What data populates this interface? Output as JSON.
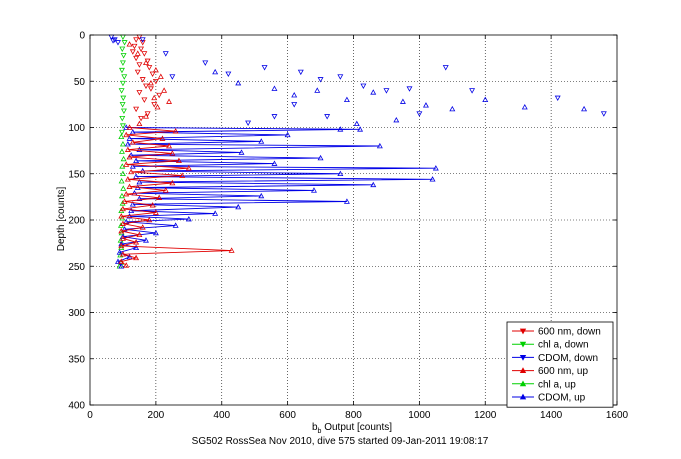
{
  "colors": {
    "red": "#e00000",
    "green": "#00d000",
    "blue": "#0000e6",
    "grid": "#000000"
  },
  "chart_data": {
    "type": "scatter",
    "title": "",
    "xlabel_main": "b",
    "xlabel_sub": "b",
    "xlabel_rest": " Output [counts]",
    "ylabel": "Depth [counts]",
    "footer": "SG502 RossSea Nov 2010, dive 575 started 09-Jan-2011 19:08:17",
    "xlim": [
      0,
      1600
    ],
    "ylim": [
      0,
      400
    ],
    "y_reversed": true,
    "grid": true,
    "legend_position": "bottom-right",
    "x_ticks": [
      "0",
      "200",
      "400",
      "600",
      "800",
      "1000",
      "1200",
      "1400",
      "1600"
    ],
    "x_tick_values": [
      0,
      200,
      400,
      600,
      800,
      1000,
      1200,
      1400,
      1600
    ],
    "y_ticks": [
      "0",
      "50",
      "100",
      "150",
      "200",
      "250",
      "300",
      "350",
      "400"
    ],
    "y_tick_values": [
      0,
      50,
      100,
      150,
      200,
      250,
      300,
      350,
      400
    ],
    "series": [
      {
        "name": "600 nm, down",
        "color": "red",
        "marker": "triangle-down",
        "mode": "markers",
        "points": [
          [
            150,
            2
          ],
          [
            140,
            5
          ],
          [
            160,
            8
          ],
          [
            135,
            12
          ],
          [
            155,
            15
          ],
          [
            130,
            18
          ],
          [
            165,
            20
          ],
          [
            140,
            25
          ],
          [
            175,
            28
          ],
          [
            150,
            32
          ],
          [
            180,
            35
          ],
          [
            145,
            40
          ],
          [
            190,
            42
          ],
          [
            160,
            48
          ],
          [
            200,
            50
          ],
          [
            170,
            55
          ],
          [
            185,
            58
          ],
          [
            150,
            62
          ],
          [
            210,
            65
          ],
          [
            165,
            70
          ],
          [
            195,
            75
          ],
          [
            140,
            80
          ],
          [
            175,
            85
          ],
          [
            155,
            90
          ]
        ]
      },
      {
        "name": "chl a, down",
        "color": "green",
        "marker": "triangle-down",
        "mode": "markers",
        "points": [
          [
            100,
            2
          ],
          [
            105,
            8
          ],
          [
            98,
            15
          ],
          [
            102,
            22
          ],
          [
            100,
            30
          ],
          [
            97,
            38
          ],
          [
            104,
            45
          ],
          [
            100,
            52
          ],
          [
            96,
            60
          ],
          [
            101,
            68
          ],
          [
            99,
            75
          ],
          [
            103,
            82
          ],
          [
            98,
            90
          ],
          [
            100,
            98
          ],
          [
            97,
            105
          ]
        ]
      },
      {
        "name": "CDOM, down",
        "color": "blue",
        "marker": "triangle-down",
        "mode": "markers",
        "points": [
          [
            65,
            2
          ],
          [
            75,
            5
          ],
          [
            85,
            8
          ],
          [
            70,
            6
          ],
          [
            160,
            5
          ],
          [
            230,
            20
          ],
          [
            250,
            45
          ],
          [
            350,
            30
          ],
          [
            420,
            42
          ],
          [
            530,
            35
          ],
          [
            640,
            40
          ],
          [
            700,
            48
          ],
          [
            760,
            45
          ],
          [
            830,
            55
          ],
          [
            900,
            60
          ],
          [
            970,
            58
          ],
          [
            1080,
            35
          ],
          [
            1160,
            60
          ],
          [
            1420,
            68
          ],
          [
            1560,
            85
          ],
          [
            1000,
            85
          ],
          [
            620,
            75
          ],
          [
            560,
            88
          ],
          [
            480,
            95
          ],
          [
            720,
            88
          ]
        ]
      },
      {
        "name": "600 nm, up",
        "color": "red",
        "marker": "triangle-up",
        "mode": "markers",
        "points": [
          [
            120,
            10
          ],
          [
            145,
            20
          ],
          [
            170,
            30
          ],
          [
            200,
            38
          ],
          [
            215,
            45
          ],
          [
            185,
            52
          ],
          [
            225,
            60
          ],
          [
            195,
            68
          ],
          [
            240,
            72
          ],
          [
            205,
            78
          ],
          [
            170,
            88
          ],
          [
            150,
            96
          ]
        ]
      },
      {
        "name": "chl a, up",
        "color": "green",
        "marker": "triangle-up",
        "mode": "markers",
        "points": [
          [
            95,
            110
          ],
          [
            100,
            118
          ],
          [
            97,
            126
          ],
          [
            102,
            134
          ],
          [
            98,
            142
          ],
          [
            100,
            150
          ],
          [
            96,
            158
          ],
          [
            101,
            166
          ],
          [
            97,
            174
          ],
          [
            99,
            182
          ],
          [
            95,
            190
          ],
          [
            98,
            198
          ],
          [
            94,
            206
          ],
          [
            96,
            214
          ],
          [
            93,
            222
          ],
          [
            95,
            230
          ],
          [
            92,
            238
          ],
          [
            94,
            246
          ],
          [
            90,
            250
          ]
        ]
      },
      {
        "name": "CDOM, up",
        "color": "blue",
        "marker": "triangle-up",
        "mode": "markers",
        "points": [
          [
            380,
            40
          ],
          [
            450,
            52
          ],
          [
            560,
            58
          ],
          [
            620,
            65
          ],
          [
            690,
            60
          ],
          [
            780,
            70
          ],
          [
            860,
            62
          ],
          [
            950,
            72
          ],
          [
            1020,
            76
          ],
          [
            1100,
            80
          ],
          [
            1200,
            70
          ],
          [
            1320,
            78
          ],
          [
            1500,
            80
          ],
          [
            930,
            92
          ],
          [
            810,
            96
          ],
          [
            760,
            102
          ]
        ]
      },
      {
        "name": "CDOM profile",
        "color": "blue",
        "marker": "triangle-up",
        "mode": "zigzag",
        "show_in_legend": false,
        "points": [
          [
            110,
            100
          ],
          [
            820,
            102
          ],
          [
            130,
            105
          ],
          [
            600,
            108
          ],
          [
            120,
            112
          ],
          [
            520,
            115
          ],
          [
            115,
            118
          ],
          [
            880,
            120
          ],
          [
            150,
            124
          ],
          [
            460,
            127
          ],
          [
            125,
            130
          ],
          [
            700,
            133
          ],
          [
            140,
            136
          ],
          [
            560,
            139
          ],
          [
            130,
            142
          ],
          [
            1050,
            144
          ],
          [
            160,
            147
          ],
          [
            760,
            150
          ],
          [
            140,
            153
          ],
          [
            1040,
            156
          ],
          [
            150,
            159
          ],
          [
            860,
            162
          ],
          [
            145,
            165
          ],
          [
            680,
            168
          ],
          [
            135,
            171
          ],
          [
            520,
            174
          ],
          [
            150,
            177
          ],
          [
            780,
            180
          ],
          [
            130,
            183
          ],
          [
            450,
            186
          ],
          [
            125,
            190
          ],
          [
            380,
            193
          ],
          [
            120,
            196
          ],
          [
            300,
            199
          ],
          [
            110,
            202
          ],
          [
            260,
            206
          ],
          [
            105,
            210
          ],
          [
            200,
            214
          ],
          [
            100,
            218
          ],
          [
            170,
            222
          ],
          [
            95,
            226
          ],
          [
            140,
            230
          ],
          [
            90,
            235
          ],
          [
            120,
            240
          ],
          [
            85,
            245
          ],
          [
            95,
            250
          ]
        ]
      },
      {
        "name": "600 nm profile",
        "color": "red",
        "marker": "triangle-up",
        "mode": "zigzag",
        "show_in_legend": false,
        "points": [
          [
            120,
            100
          ],
          [
            260,
            104
          ],
          [
            110,
            108
          ],
          [
            220,
            112
          ],
          [
            130,
            116
          ],
          [
            240,
            120
          ],
          [
            115,
            124
          ],
          [
            250,
            128
          ],
          [
            120,
            132
          ],
          [
            270,
            136
          ],
          [
            110,
            140
          ],
          [
            300,
            144
          ],
          [
            125,
            148
          ],
          [
            280,
            152
          ],
          [
            115,
            156
          ],
          [
            250,
            160
          ],
          [
            120,
            164
          ],
          [
            230,
            168
          ],
          [
            110,
            172
          ],
          [
            210,
            176
          ],
          [
            105,
            180
          ],
          [
            190,
            184
          ],
          [
            100,
            188
          ],
          [
            200,
            192
          ],
          [
            95,
            196
          ],
          [
            180,
            200
          ],
          [
            100,
            204
          ],
          [
            160,
            208
          ],
          [
            95,
            212
          ],
          [
            150,
            216
          ],
          [
            100,
            220
          ],
          [
            140,
            224
          ],
          [
            95,
            228
          ],
          [
            430,
            233
          ],
          [
            100,
            237
          ],
          [
            140,
            241
          ],
          [
            95,
            245
          ],
          [
            110,
            249
          ]
        ]
      }
    ]
  }
}
